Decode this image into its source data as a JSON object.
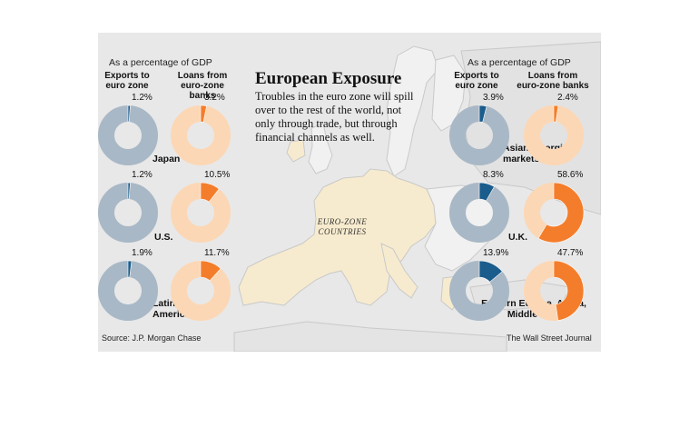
{
  "title": "European Exposure",
  "dek": "Troubles in the euro zone will spill over to the rest of the world, not only through trade, but through financial channels as well.",
  "map_label": "EURO-ZONE COUNTRIES",
  "source": "Source: J.P. Morgan Chase",
  "credit": "The Wall Street Journal",
  "left_panel": {
    "subhead": "As a percentage of GDP",
    "col_exports": "Exports to euro zone",
    "col_loans": "Loans from euro-zone banks"
  },
  "right_panel": {
    "subhead": "As a percentage of GDP",
    "col_exports": "Exports to euro zone",
    "col_loans": "Loans from euro-zone banks"
  },
  "colors": {
    "exports_fill": "#1a5c8c",
    "exports_track": "#a9b8c6",
    "loans_fill": "#f47d2b",
    "loans_track": "#fcd7b5"
  },
  "chart_data": [
    {
      "type": "pie",
      "title": "European Exposure",
      "subtitle": "As a percentage of GDP",
      "series": [
        {
          "name": "Exports to euro zone",
          "values": [
            1.2,
            1.2,
            1.9,
            3.9,
            8.3,
            13.9
          ]
        },
        {
          "name": "Loans from euro-zone banks",
          "values": [
            3.2,
            10.5,
            11.7,
            2.4,
            58.6,
            47.7
          ]
        }
      ],
      "categories": [
        "Japan",
        "U.S.",
        "Latin America",
        "Asian emerging markets",
        "U.K.",
        "Eastern Europe, Africa, Middle East"
      ],
      "labels": {
        "exports": [
          "1.2%",
          "1.2%",
          "1.9%",
          "3.9%",
          "8.3%",
          "13.9%"
        ],
        "loans": [
          "3.2%",
          "10.5%",
          "11.7%",
          "2.4%",
          "58.6%",
          "47.7%"
        ]
      }
    }
  ]
}
